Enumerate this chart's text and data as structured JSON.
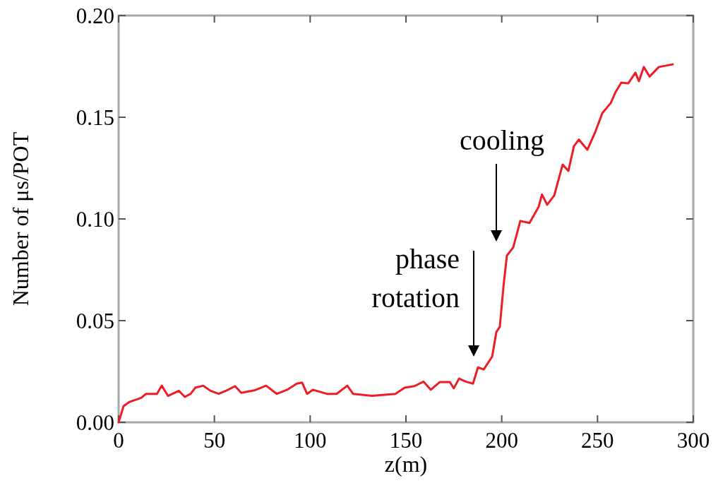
{
  "chart_data": {
    "type": "line",
    "xlabel": "z(m)",
    "ylabel": "Number of μs/POT",
    "xlim": [
      0,
      300
    ],
    "ylim": [
      0,
      0.2
    ],
    "xticks": [
      0,
      50,
      100,
      150,
      200,
      250,
      300
    ],
    "yticks": [
      {
        "value": 0,
        "label": "0.00"
      },
      {
        "value": 0.05,
        "label": "0.05"
      },
      {
        "value": 0.1,
        "label": "0.10"
      },
      {
        "value": 0.15,
        "label": "0.15"
      },
      {
        "value": 0.2,
        "label": "0.20"
      }
    ],
    "grid": false,
    "annotations": [
      "cooling",
      "phase\nrotation"
    ],
    "series": [
      {
        "color": "#ee1c25",
        "x": [
          0,
          2.6,
          5.6,
          11.8,
          14.3,
          20,
          22.5,
          25.8,
          31.4,
          34.6,
          37.6,
          40,
          44.2,
          48,
          52.3,
          57.2,
          60.8,
          64,
          70.8,
          77,
          82.6,
          88,
          93,
          95.8,
          98.4,
          101.4,
          108.7,
          113.8,
          119.4,
          122.4,
          132.3,
          144.5,
          149.3,
          154.4,
          159.2,
          163,
          167.7,
          172.9,
          175,
          177.7,
          181.3,
          185,
          187.6,
          190.6,
          195,
          197.2,
          199,
          201,
          202.7,
          206,
          209.7,
          214.5,
          219.3,
          221,
          223.7,
          227.4,
          231.8,
          234.8,
          237.7,
          240.3,
          244.7,
          248.8,
          252.5,
          256.9,
          259.5,
          262.4,
          266.1,
          269.8,
          271.6,
          274.2,
          277.2,
          282,
          289.3
        ],
        "values": [
          0,
          0.008,
          0.01,
          0.012,
          0.014,
          0.014,
          0.018,
          0.013,
          0.0155,
          0.0125,
          0.014,
          0.017,
          0.018,
          0.0155,
          0.014,
          0.016,
          0.0178,
          0.0145,
          0.0157,
          0.018,
          0.014,
          0.016,
          0.019,
          0.0195,
          0.014,
          0.016,
          0.014,
          0.014,
          0.018,
          0.014,
          0.013,
          0.014,
          0.017,
          0.0178,
          0.02,
          0.016,
          0.0198,
          0.0198,
          0.0167,
          0.0215,
          0.02,
          0.019,
          0.027,
          0.026,
          0.0323,
          0.0444,
          0.047,
          0.0677,
          0.082,
          0.086,
          0.099,
          0.098,
          0.106,
          0.112,
          0.107,
          0.1115,
          0.1267,
          0.1236,
          0.1358,
          0.139,
          0.134,
          0.1427,
          0.152,
          0.157,
          0.1625,
          0.167,
          0.1667,
          0.1719,
          0.1677,
          0.1747,
          0.17,
          0.1747,
          0.176
        ]
      }
    ]
  }
}
